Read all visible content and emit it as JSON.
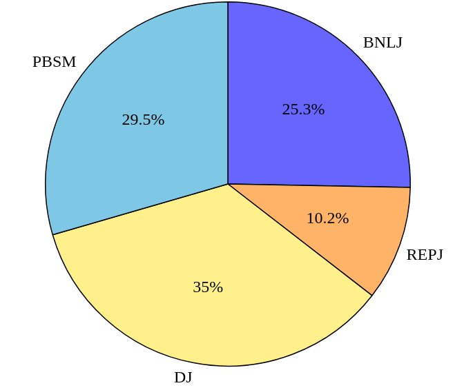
{
  "chart_data": {
    "type": "pie",
    "categories": [
      "BNLJ",
      "REPJ",
      "DJ",
      "PBSM"
    ],
    "values": [
      25.3,
      10.2,
      35,
      29.5
    ],
    "value_labels": [
      "25.3%",
      "10.2%",
      "35%",
      "29.5%"
    ],
    "colors": [
      "#6666ff",
      "#ffb366",
      "#fff08c",
      "#7ec8e6"
    ],
    "data_labels": true
  }
}
